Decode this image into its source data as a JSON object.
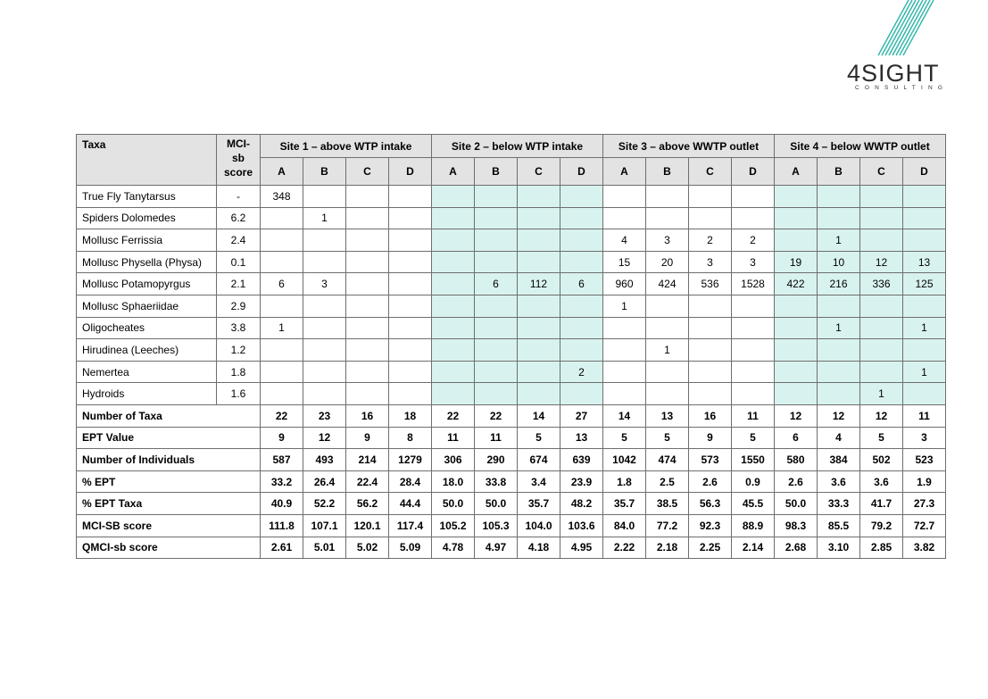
{
  "logo": {
    "text": "4SIGHT",
    "subtext": "CONSULTING"
  },
  "table": {
    "header": {
      "taxa": "Taxa",
      "mci_line1": "MCI-",
      "mci_line2": "sb",
      "mci_line3": "score",
      "sites": [
        "Site 1 – above WTP intake",
        "Site 2 – below WTP intake",
        "Site 3 – above WWTP outlet",
        "Site 4 – below WWTP outlet"
      ],
      "replicates": [
        "A",
        "B",
        "C",
        "D"
      ]
    },
    "rows": [
      {
        "taxa": "True Fly Tanytarsus",
        "mci": "-",
        "cells": [
          "348",
          "",
          "",
          "",
          "",
          "",
          "",
          "",
          "",
          "",
          "",
          "",
          "",
          "",
          "",
          ""
        ]
      },
      {
        "taxa": "Spiders Dolomedes",
        "mci": "6.2",
        "cells": [
          "",
          "1",
          "",
          "",
          "",
          "",
          "",
          "",
          "",
          "",
          "",
          "",
          "",
          "",
          "",
          ""
        ]
      },
      {
        "taxa": "Mollusc Ferrissia",
        "mci": "2.4",
        "cells": [
          "",
          "",
          "",
          "",
          "",
          "",
          "",
          "",
          "4",
          "3",
          "2",
          "2",
          "",
          "1",
          "",
          ""
        ]
      },
      {
        "taxa": "Mollusc Physella (Physa)",
        "mci": "0.1",
        "cells": [
          "",
          "",
          "",
          "",
          "",
          "",
          "",
          "",
          "15",
          "20",
          "3",
          "3",
          "19",
          "10",
          "12",
          "13"
        ]
      },
      {
        "taxa": "Mollusc Potamopyrgus",
        "mci": "2.1",
        "cells": [
          "6",
          "3",
          "",
          "",
          "",
          "6",
          "112",
          "6",
          "960",
          "424",
          "536",
          "1528",
          "422",
          "216",
          "336",
          "125"
        ]
      },
      {
        "taxa": "Mollusc Sphaeriidae",
        "mci": "2.9",
        "cells": [
          "",
          "",
          "",
          "",
          "",
          "",
          "",
          "",
          "1",
          "",
          "",
          "",
          "",
          "",
          "",
          ""
        ]
      },
      {
        "taxa": "Oligocheates",
        "mci": "3.8",
        "cells": [
          "1",
          "",
          "",
          "",
          "",
          "",
          "",
          "",
          "",
          "",
          "",
          "",
          "",
          "1",
          "",
          "1"
        ]
      },
      {
        "taxa": "Hirudinea (Leeches)",
        "mci": "1.2",
        "cells": [
          "",
          "",
          "",
          "",
          "",
          "",
          "",
          "",
          "",
          "1",
          "",
          "",
          "",
          "",
          "",
          ""
        ]
      },
      {
        "taxa": "Nemertea",
        "mci": "1.8",
        "cells": [
          "",
          "",
          "",
          "",
          "",
          "",
          "",
          "2",
          "",
          "",
          "",
          "",
          "",
          "",
          "",
          "1"
        ]
      },
      {
        "taxa": "Hydroids",
        "mci": "1.6",
        "cells": [
          "",
          "",
          "",
          "",
          "",
          "",
          "",
          "",
          "",
          "",
          "",
          "",
          "",
          "",
          "1",
          ""
        ]
      }
    ],
    "summary": [
      {
        "label": "Number of Taxa",
        "cells": [
          "22",
          "23",
          "16",
          "18",
          "22",
          "22",
          "14",
          "27",
          "14",
          "13",
          "16",
          "11",
          "12",
          "12",
          "12",
          "11"
        ]
      },
      {
        "label": "EPT Value",
        "cells": [
          "9",
          "12",
          "9",
          "8",
          "11",
          "11",
          "5",
          "13",
          "5",
          "5",
          "9",
          "5",
          "6",
          "4",
          "5",
          "3"
        ]
      },
      {
        "label": "Number of Individuals",
        "cells": [
          "587",
          "493",
          "214",
          "1279",
          "306",
          "290",
          "674",
          "639",
          "1042",
          "474",
          "573",
          "1550",
          "580",
          "384",
          "502",
          "523"
        ]
      },
      {
        "label": "% EPT",
        "cells": [
          "33.2",
          "26.4",
          "22.4",
          "28.4",
          "18.0",
          "33.8",
          "3.4",
          "23.9",
          "1.8",
          "2.5",
          "2.6",
          "0.9",
          "2.6",
          "3.6",
          "3.6",
          "1.9"
        ]
      },
      {
        "label": "% EPT Taxa",
        "cells": [
          "40.9",
          "52.2",
          "56.2",
          "44.4",
          "50.0",
          "50.0",
          "35.7",
          "48.2",
          "35.7",
          "38.5",
          "56.3",
          "45.5",
          "50.0",
          "33.3",
          "41.7",
          "27.3"
        ]
      },
      {
        "label": "MCI-SB score",
        "cells": [
          "111.8",
          "107.1",
          "120.1",
          "117.4",
          "105.2",
          "105.3",
          "104.0",
          "103.6",
          "84.0",
          "77.2",
          "92.3",
          "88.9",
          "98.3",
          "85.5",
          "79.2",
          "72.7"
        ]
      },
      {
        "label": "QMCI-sb score",
        "cells": [
          "2.61",
          "5.01",
          "5.02",
          "5.09",
          "4.78",
          "4.97",
          "4.18",
          "4.95",
          "2.22",
          "2.18",
          "2.25",
          "2.14",
          "2.68",
          "3.10",
          "2.85",
          "3.82"
        ]
      }
    ],
    "teal_color": "#d8f3ef",
    "header_color": "#e3e3e3"
  }
}
